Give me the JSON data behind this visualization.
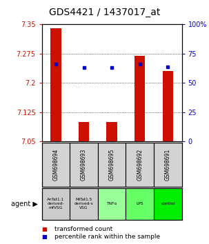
{
  "title": "GDS4421 / 1437017_at",
  "samples": [
    "GSM698694",
    "GSM698693",
    "GSM698695",
    "GSM698692",
    "GSM698691"
  ],
  "agents": [
    "AnTat1.1\nderived-\nmfVSG",
    "MiTat1.5\nderived-s\nVSG",
    "TNFα",
    "LPS",
    "control"
  ],
  "agent_colors": [
    "#cccccc",
    "#cccccc",
    "#99ff99",
    "#66ff66",
    "#00ee00"
  ],
  "bar_values": [
    7.34,
    7.1,
    7.1,
    7.27,
    7.23
  ],
  "dot_values": [
    66,
    63,
    63,
    66,
    64
  ],
  "y_min": 7.05,
  "y_max": 7.35,
  "y_ticks": [
    7.05,
    7.125,
    7.2,
    7.275,
    7.35
  ],
  "y_tick_labels": [
    "7.05",
    "7.125",
    "7.2",
    "7.275",
    "7.35"
  ],
  "y2_ticks": [
    0,
    25,
    50,
    75,
    100
  ],
  "y2_tick_labels": [
    "0",
    "25",
    "50",
    "75",
    "100%"
  ],
  "bar_color": "#cc1100",
  "dot_color": "#0000cc",
  "title_fontsize": 10,
  "tick_fontsize": 7,
  "legend_fontsize": 6.5,
  "agent_label": "agent",
  "legend1": "transformed count",
  "legend2": "percentile rank within the sample",
  "bg_color": "#ffffff",
  "plot_bg": "#ffffff"
}
